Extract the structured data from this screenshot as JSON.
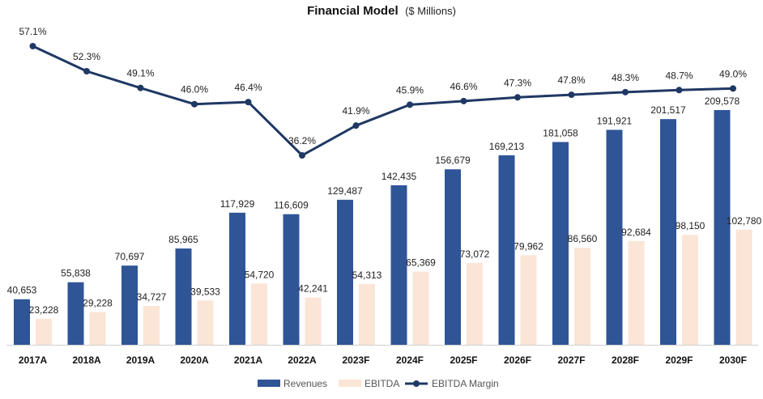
{
  "chart_data": {
    "type": "bar",
    "title": "Financial Model",
    "subtitle": "($ Millions)",
    "categories": [
      "2017A",
      "2018A",
      "2019A",
      "2020A",
      "2021A",
      "2022A",
      "2023F",
      "2024F",
      "2025F",
      "2026F",
      "2027F",
      "2028F",
      "2029F",
      "2030F"
    ],
    "series": [
      {
        "name": "Revenues",
        "kind": "bar",
        "color": "#2f5597",
        "values": [
          40653,
          55838,
          70697,
          85965,
          117929,
          116609,
          129487,
          142435,
          156679,
          169213,
          181058,
          191921,
          201517,
          209578
        ],
        "labels": [
          "40,653",
          "55,838",
          "70,697",
          "85,965",
          "117,929",
          "116,609",
          "129,487",
          "142,435",
          "156,679",
          "169,213",
          "181,058",
          "191,921",
          "201,517",
          "209,578"
        ]
      },
      {
        "name": "EBITDA",
        "kind": "bar",
        "color": "#fbe5d6",
        "values": [
          23228,
          29228,
          34727,
          39533,
          54720,
          42241,
          54313,
          65369,
          73072,
          79962,
          86560,
          92684,
          98150,
          102780
        ],
        "labels": [
          "23,228",
          "29,228",
          "34,727",
          "39,533",
          "54,720",
          "42,241",
          "54,313",
          "65,369",
          "73,072",
          "79,962",
          "86,560",
          "92,684",
          "98,150",
          "102,780"
        ]
      },
      {
        "name": "EBITDA Margin",
        "kind": "line",
        "color": "#1f3864",
        "values": [
          57.1,
          52.3,
          49.1,
          46.0,
          46.4,
          36.2,
          41.9,
          45.9,
          46.6,
          47.3,
          47.8,
          48.3,
          48.7,
          49.0
        ],
        "labels": [
          "57.1%",
          "52.3%",
          "49.1%",
          "46.0%",
          "46.4%",
          "36.2%",
          "41.9%",
          "45.9%",
          "46.6%",
          "47.3%",
          "47.8%",
          "48.3%",
          "48.7%",
          "49.0%"
        ]
      }
    ],
    "grid": false,
    "legend": "bottom-center"
  }
}
